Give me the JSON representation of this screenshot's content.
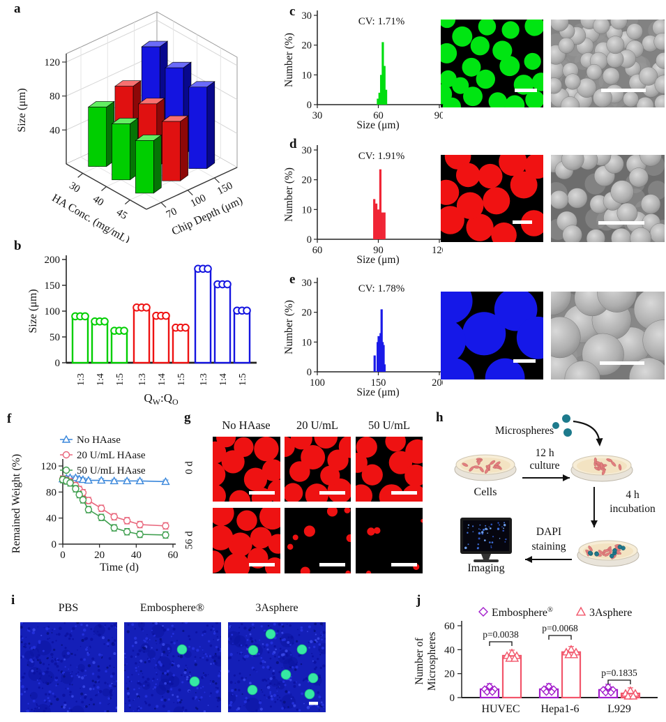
{
  "chart_data": [
    {
      "panel": "a",
      "type": "bar3d",
      "ylabel": "Size (μm)",
      "y_ticks": [
        40,
        80,
        120
      ],
      "x_axis": {
        "label": "HA Conc. (mg/mL)",
        "ticks": [
          "30",
          "40",
          "45"
        ]
      },
      "z_axis": {
        "label": "Chip Depth (μm)",
        "ticks": [
          "70",
          "100",
          "150"
        ]
      },
      "series": [
        {
          "name": "Chip depth 70 um",
          "color": "#00CE00",
          "values": [
            70,
            66,
            62
          ]
        },
        {
          "name": "Chip depth 100 um",
          "color": "#E01111",
          "values": [
            80,
            75,
            70
          ]
        },
        {
          "name": "Chip depth 150 um",
          "color": "#1414E0",
          "values": [
            112,
            103,
            96
          ]
        }
      ]
    },
    {
      "panel": "b",
      "type": "bar",
      "ylabel": "Size (μm)",
      "xlabel": "QW:QO",
      "ylim": [
        0,
        200
      ],
      "y_ticks": [
        0,
        50,
        100,
        150,
        200
      ],
      "categories": [
        "1:3",
        "1:4",
        "1:5",
        "1:3",
        "1:4",
        "1:5",
        "1:3",
        "1:4",
        "1:5"
      ],
      "values": [
        90,
        80,
        62,
        107,
        91,
        68,
        182,
        152,
        101
      ],
      "group_colors": [
        "#00CE00",
        "#EE1111",
        "#1414E0"
      ],
      "points_per_bar": 3
    },
    {
      "panel": "c",
      "type": "histogram",
      "annotation": "CV: 1.71%",
      "ylabel": "Number (%)",
      "xlabel": "Size (μm)",
      "xlim": [
        30,
        90
      ],
      "x_ticks": [
        30,
        60,
        90
      ],
      "ylim": [
        0,
        30
      ],
      "y_ticks": [
        0,
        10,
        20,
        30
      ],
      "color": "#00DD10",
      "bins": [
        [
          59.8,
          2
        ],
        [
          60.6,
          4
        ],
        [
          61.4,
          10
        ],
        [
          62.2,
          21
        ],
        [
          63.0,
          13
        ],
        [
          63.8,
          5
        ]
      ]
    },
    {
      "panel": "d",
      "type": "histogram",
      "annotation": "CV: 1.91%",
      "ylabel": "Number (%)",
      "xlabel": "Size (μm)",
      "xlim": [
        60,
        120
      ],
      "x_ticks": [
        60,
        90,
        120
      ],
      "ylim": [
        0,
        30
      ],
      "y_ticks": [
        0,
        10,
        20,
        30
      ],
      "color": "#F02535",
      "bins": [
        [
          88,
          13.5
        ],
        [
          89,
          12
        ],
        [
          90,
          10
        ],
        [
          91,
          23.5
        ],
        [
          92,
          9
        ],
        [
          93,
          9
        ]
      ]
    },
    {
      "panel": "e",
      "type": "histogram",
      "annotation": "CV: 1.78%",
      "ylabel": "Number (%)",
      "xlabel": "Size (μm)",
      "xlim": [
        100,
        200
      ],
      "x_ticks": [
        100,
        150,
        200
      ],
      "ylim": [
        0,
        30
      ],
      "y_ticks": [
        0,
        10,
        20,
        30
      ],
      "color": "#1A1AE8",
      "bins": [
        [
          147,
          5.5
        ],
        [
          149.5,
          10
        ],
        [
          150.3,
          12
        ],
        [
          151.1,
          11
        ],
        [
          151.9,
          13
        ],
        [
          152.7,
          21
        ],
        [
          153.5,
          10
        ],
        [
          154.3,
          9
        ],
        [
          155.1,
          2.5
        ]
      ]
    },
    {
      "panel": "f",
      "type": "line",
      "ylabel": "Remained Weight (%)",
      "xlabel": "Time (d)",
      "ylim": [
        0,
        120
      ],
      "y_ticks": [
        0,
        40,
        80,
        120
      ],
      "xlim": [
        0,
        60
      ],
      "x_ticks": [
        0,
        20,
        40,
        60
      ],
      "x": [
        0,
        2,
        4,
        7,
        9,
        11,
        14,
        21,
        28,
        35,
        42,
        56
      ],
      "legend_position": "top-left-inside",
      "series": [
        {
          "name": "No HAase",
          "color": "#3A87DB",
          "marker": "triangle",
          "err": 2.5,
          "values": [
            100,
            101,
            102,
            102,
            100,
            99,
            98,
            98,
            97,
            97,
            97,
            96
          ]
        },
        {
          "name": "20 U/mL HAase",
          "color": "#E8647A",
          "marker": "circle",
          "err": 5,
          "values": [
            100,
            98,
            96,
            90,
            84,
            79,
            67,
            55,
            42,
            36,
            30,
            28
          ]
        },
        {
          "name": "50 U/mL HAase",
          "color": "#3D9E4D",
          "marker": "circle",
          "err": 5,
          "values": [
            99,
            97,
            94,
            85,
            76,
            68,
            53,
            41,
            25,
            19,
            15,
            14
          ]
        }
      ]
    },
    {
      "panel": "j",
      "type": "grouped_bar",
      "ylabel_lines": [
        "Number of",
        "Microspheres"
      ],
      "ylim": [
        0,
        60
      ],
      "y_ticks": [
        0,
        20,
        40,
        60
      ],
      "categories": [
        "HUVEC",
        "Hepa1-6",
        "L929"
      ],
      "series": [
        {
          "name": "Embosphere®",
          "color": "#A21CCB",
          "marker": "diamond",
          "values": [
            7,
            7,
            6.5
          ]
        },
        {
          "name": "3Asphere",
          "color": "#F2556A",
          "marker": "triangle",
          "values": [
            35,
            38,
            3.5
          ]
        }
      ],
      "p_values": [
        "p=0.0038",
        "p=0.0068",
        "p=0.1835"
      ]
    }
  ],
  "panels": {
    "a": {
      "letter": "a"
    },
    "b": {
      "letter": "b"
    },
    "c": {
      "letter": "c",
      "images": [
        "fluorescence green microspheres",
        "SEM microspheres"
      ]
    },
    "d": {
      "letter": "d",
      "images": [
        "fluorescence red microspheres",
        "SEM microspheres"
      ]
    },
    "e": {
      "letter": "e",
      "images": [
        "fluorescence blue microspheres",
        "SEM microspheres"
      ]
    },
    "f": {
      "letter": "f"
    },
    "g": {
      "letter": "g",
      "col_headers": [
        "No HAase",
        "20 U/mL",
        "50 U/mL"
      ],
      "row_labels": [
        "0 d",
        "56 d"
      ]
    },
    "h": {
      "letter": "h",
      "labels": {
        "microspheres": "Microspheres",
        "cells": "Cells",
        "culture_l1": "12 h",
        "culture_l2": "culture",
        "incub_l1": "4 h",
        "incub_l2": "incubation",
        "dapi_l1": "DAPI",
        "dapi_l2": "staining",
        "imaging": "Imaging"
      }
    },
    "i": {
      "letter": "i",
      "captions": [
        "PBS",
        "Embosphere®",
        "3Asphere"
      ],
      "visible_microspheres": [
        0,
        2,
        7
      ]
    },
    "j": {
      "letter": "j"
    }
  }
}
